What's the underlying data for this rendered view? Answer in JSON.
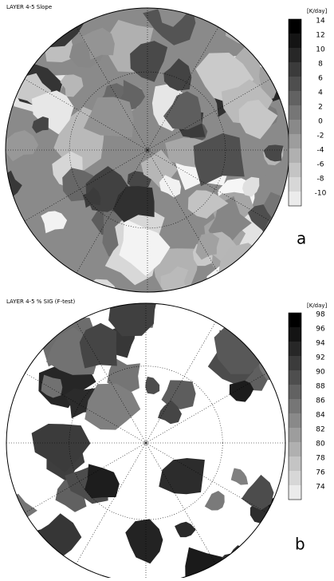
{
  "panels": [
    {
      "title": "LAYER 4-5 Slope",
      "colorbar_unit": "[K/day]",
      "colorbar_ticks": [
        14,
        12,
        10,
        8,
        6,
        4,
        2,
        0,
        -2,
        -4,
        -6,
        -8,
        -10
      ],
      "label": "a"
    },
    {
      "title": "LAYER 4-5 % SIG (F-test)",
      "colorbar_unit": "[K/day]",
      "colorbar_ticks": [
        98,
        96,
        94,
        92,
        90,
        88,
        86,
        84,
        82,
        80,
        78,
        76,
        74
      ],
      "label": "b"
    }
  ]
}
